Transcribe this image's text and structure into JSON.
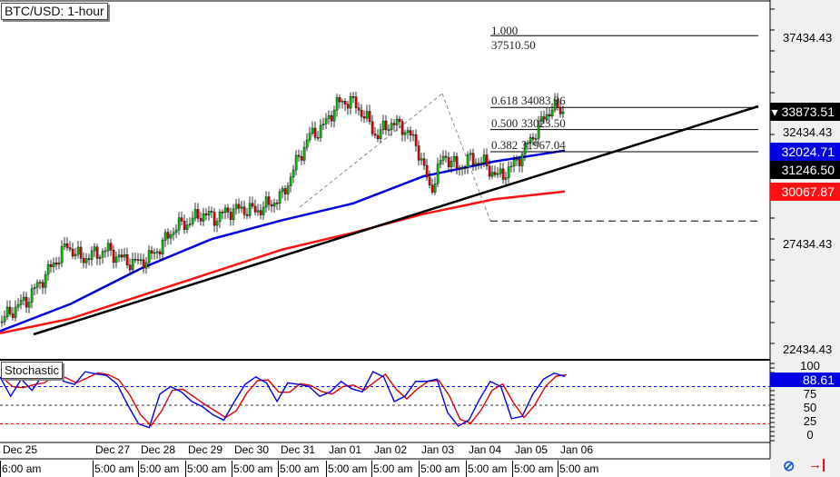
{
  "title": "BTC/USD: 1-hour",
  "indicator_label": "Stochastic",
  "colors": {
    "bull": "#00c000",
    "bear": "#e00000",
    "ma_fast": "#0000e0",
    "ma_slow": "#ff1010",
    "trend": "#000000",
    "axis_bg": "#f0f0f0"
  },
  "chart_data": {
    "type": "candlestick",
    "title": "BTC/USD: 1-hour",
    "closes": [
      23812,
      24463,
      24897,
      25765,
      26632,
      27500,
      26849,
      27066,
      27283,
      26849,
      26632,
      26849,
      27500,
      28368,
      28584,
      29018,
      28801,
      29148,
      29235,
      29148,
      29452,
      29886,
      31404,
      32706,
      33139,
      34224,
      34441,
      33790,
      32706,
      33356,
      33139,
      32272,
      30103,
      31838,
      31187,
      31621,
      31404,
      30753,
      31187,
      32055,
      33139,
      34094,
      33873.51
    ],
    "ma_fast": [
      23400,
      24700,
      26400,
      27800,
      28700,
      29500,
      30800,
      31500,
      32024.71
    ],
    "ma_slow": [
      23300,
      24000,
      25100,
      26200,
      27300,
      28100,
      29000,
      29700,
      30067.87
    ],
    "trendline_value": 31246.5,
    "y_ticks": [
      "37434.43",
      "32434.43",
      "27434.43",
      "22434.43"
    ],
    "y_range": [
      21600,
      39200
    ],
    "current_price": "33873.51",
    "price_tags": {
      "last": "33873.51",
      "ma_fast": "32024.71",
      "trend": "31246.50",
      "ma_slow": "30067.87"
    },
    "fibonacci": [
      {
        "ratio": "1.000",
        "price": "37510.50"
      },
      {
        "ratio": "0.618",
        "price": "34083.96"
      },
      {
        "ratio": "0.500",
        "price": "33023.50"
      },
      {
        "ratio": "0.382",
        "price": "31967.04"
      }
    ],
    "fib_low": 28660,
    "stochastic": {
      "k": [
        88,
        62,
        85,
        70,
        90,
        92,
        82,
        78,
        95,
        92,
        90,
        78,
        50,
        25,
        20,
        65,
        75,
        68,
        55,
        48,
        37,
        30,
        55,
        78,
        88,
        80,
        55,
        80,
        78,
        75,
        62,
        68,
        82,
        72,
        68,
        95,
        88,
        55,
        62,
        82,
        82,
        85,
        40,
        22,
        30,
        58,
        82,
        75,
        32,
        35,
        65,
        85,
        93,
        88.61
      ],
      "levels": [
        75,
        50,
        25
      ],
      "ticks": [
        "100",
        "75",
        "50",
        "25",
        "0"
      ],
      "value": "88.61"
    },
    "x_dates": [
      "Dec 25",
      "Dec 27",
      "Dec 28",
      "Dec 29",
      "Dec 30",
      "Dec 31",
      "Jan 01",
      "Jan 02",
      "Jan 03",
      "Jan 04",
      "Jan 05",
      "Jan 06"
    ],
    "x_times": [
      "6:00 am",
      "5:00 am",
      "5:00 am",
      "5:00 am",
      "5:00 am",
      "5:00 am",
      "5:00 am",
      "5:00 am",
      "5:00 am",
      "5:00 am",
      "5:00 am",
      "5:00 am"
    ]
  }
}
